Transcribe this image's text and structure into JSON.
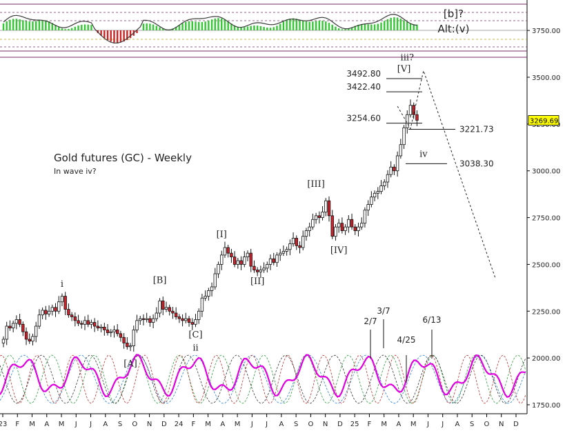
{
  "chart_data": {
    "type": "candlestick",
    "title": "Gold futures (GC) - Weekly",
    "subtitle": "In wave iv?",
    "last_price": "3269.69",
    "ylim": [
      1700,
      3900
    ],
    "y_ticks": [
      "3750.00",
      "3500.00",
      "3250.00",
      "3000.00",
      "2750.00",
      "2500.00",
      "2250.00",
      "2000.00",
      "1750.00"
    ],
    "x_ticks": [
      "23",
      "F",
      "M",
      "A",
      "M",
      "J",
      "J",
      "A",
      "S",
      "O",
      "N",
      "D",
      "24",
      "F",
      "M",
      "A",
      "M",
      "J",
      "J",
      "A",
      "S",
      "O",
      "N",
      "D",
      "25",
      "F",
      "M",
      "A",
      "M",
      "J",
      "J",
      "A",
      "S",
      "O",
      "N",
      "D"
    ],
    "wave_labels": [
      {
        "text": "i",
        "week": 18,
        "price": 2380
      },
      {
        "text": "[A]",
        "week": 39,
        "price": 1955
      },
      {
        "text": "[B]",
        "week": 48,
        "price": 2400
      },
      {
        "text": "[C]",
        "week": 59,
        "price": 2110
      },
      {
        "text": "ii",
        "week": 59,
        "price": 2040
      },
      {
        "text": "[I]",
        "week": 67,
        "price": 2645
      },
      {
        "text": "[II]",
        "week": 78,
        "price": 2395
      },
      {
        "text": "[III]",
        "week": 96,
        "price": 2915
      },
      {
        "text": "[IV]",
        "week": 103,
        "price": 2560
      },
      {
        "text": "[V]",
        "week": 123,
        "price": 3530
      },
      {
        "text": "iii?",
        "week": 124,
        "price": 3590
      },
      {
        "text": "iv",
        "week": 129,
        "price": 3075
      }
    ],
    "price_levels": [
      {
        "label": "3492.80",
        "value": 3492.8,
        "label_side": "left"
      },
      {
        "label": "3422.40",
        "value": 3422.4,
        "label_side": "left"
      },
      {
        "label": "3254.60",
        "value": 3254.6,
        "label_side": "left"
      },
      {
        "label": "3221.73",
        "value": 3221.73,
        "label_side": "right"
      },
      {
        "label": "3038.30",
        "value": 3038.3,
        "label_side": "right"
      }
    ],
    "annotations": [
      {
        "text": "[b]?",
        "week": 134,
        "price": 3820
      },
      {
        "text": "Alt:(v)",
        "week": 134,
        "price": 3740
      }
    ],
    "cycle_dates": [
      "2/7",
      "3/7",
      "4/25",
      "6/13"
    ],
    "projection": {
      "style": "dotted",
      "points": [
        [
          121,
          3345
        ],
        [
          125,
          3225
        ],
        [
          129,
          3535
        ],
        [
          151,
          2430
        ]
      ]
    },
    "weekly_closes": [
      2100,
      2170,
      2160,
      2185,
      2205,
      2180,
      2140,
      2100,
      2090,
      2115,
      2170,
      2230,
      2255,
      2235,
      2250,
      2270,
      2250,
      2300,
      2330,
      2260,
      2230,
      2220,
      2200,
      2185,
      2180,
      2200,
      2180,
      2190,
      2170,
      2160,
      2165,
      2150,
      2135,
      2140,
      2150,
      2130,
      2110,
      2080,
      2060,
      2065,
      2150,
      2200,
      2210,
      2205,
      2210,
      2190,
      2210,
      2240,
      2305,
      2260,
      2270,
      2250,
      2240,
      2220,
      2210,
      2200,
      2210,
      2190,
      2180,
      2205,
      2250,
      2320,
      2330,
      2360,
      2380,
      2450,
      2500,
      2550,
      2590,
      2560,
      2540,
      2500,
      2520,
      2500,
      2540,
      2560,
      2490,
      2470,
      2460,
      2470,
      2480,
      2500,
      2530,
      2510,
      2550,
      2560,
      2570,
      2580,
      2610,
      2640,
      2600,
      2590,
      2650,
      2680,
      2700,
      2740,
      2760,
      2750,
      2780,
      2840,
      2760,
      2650,
      2700,
      2720,
      2680,
      2700,
      2740,
      2700,
      2680,
      2700,
      2720,
      2790,
      2820,
      2860,
      2880,
      2890,
      2920,
      2940,
      2980,
      3020,
      3000,
      3080,
      3140,
      3230,
      3300,
      3350,
      3300,
      3270
    ],
    "indicator_top": {
      "type": "histogram+line",
      "zero_value": 0
    },
    "cycle_panel": {
      "type": "line",
      "series": [
        {
          "name": "composite",
          "color": "#e000e0"
        },
        {
          "name": "c1",
          "color": "#2a7fd4"
        },
        {
          "name": "c2",
          "color": "#2e9e3e"
        },
        {
          "name": "c3",
          "color": "#c23030"
        },
        {
          "name": "c4",
          "color": "#333333"
        }
      ]
    },
    "grid": false
  }
}
